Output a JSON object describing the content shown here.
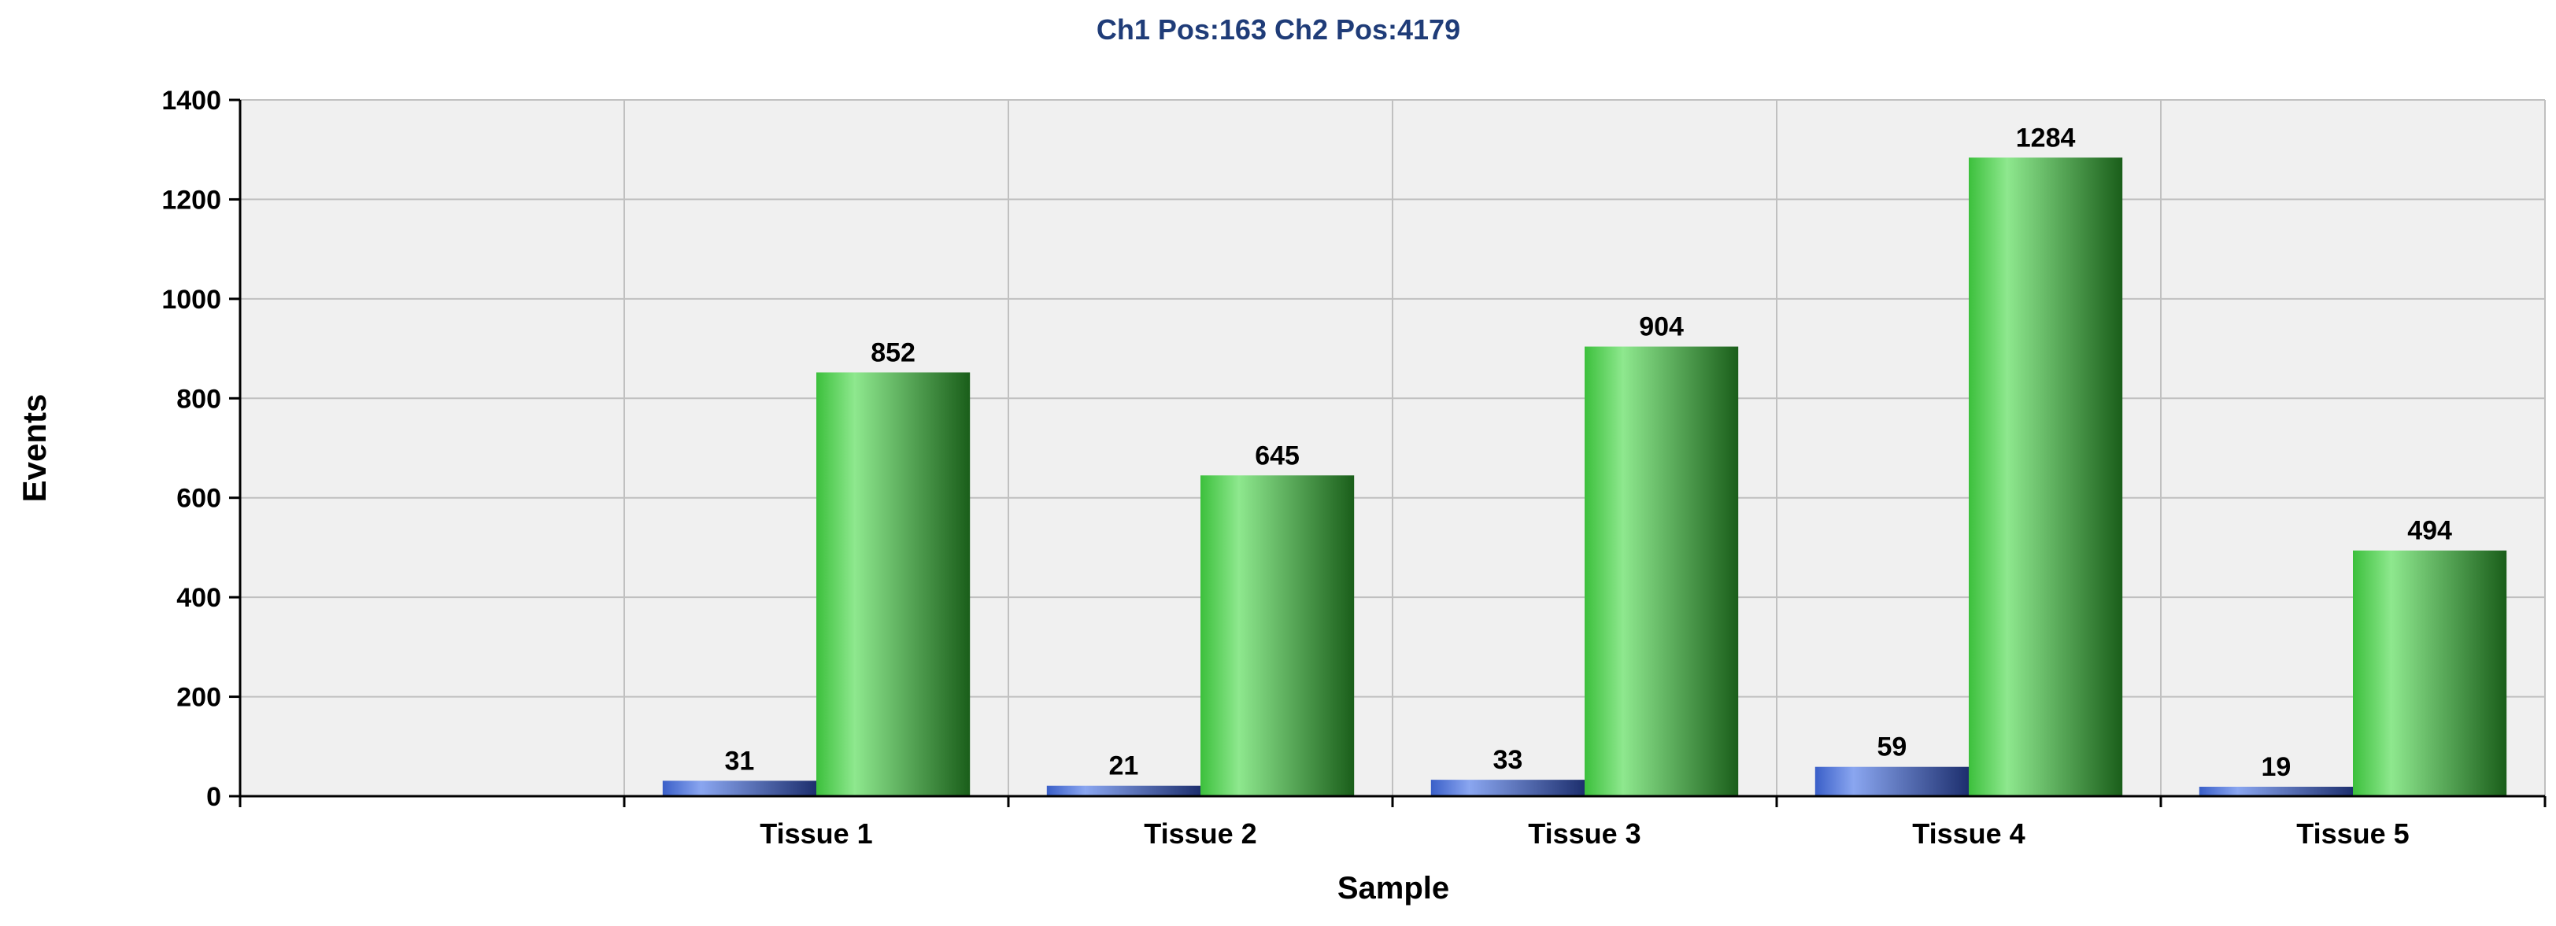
{
  "chart_data": {
    "type": "bar",
    "title": "Ch1 Pos:163 Ch2 Pos:4179",
    "xlabel": "Sample",
    "ylabel": "Events",
    "categories": [
      "Tissue 1",
      "Tissue 2",
      "Tissue 3",
      "Tissue 4",
      "Tissue 5"
    ],
    "series": [
      {
        "values": [
          31,
          21,
          33,
          59,
          19
        ],
        "color": "#3a5fc8",
        "gradient": [
          "#8aa6f0",
          "#1d2f6e"
        ]
      },
      {
        "values": [
          852,
          645,
          904,
          1284,
          494
        ],
        "color": "#3cc03c",
        "gradient": [
          "#8ee88e",
          "#1a5e1a"
        ]
      }
    ],
    "ylim": [
      0,
      1400
    ],
    "yticks": [
      0,
      200,
      400,
      600,
      800,
      1000,
      1200,
      1400
    ],
    "xlim": [
      -0.5,
      5.5
    ],
    "grid": true,
    "data_labels": true,
    "legend": "none",
    "colors": {
      "title": "#1f3c78",
      "plot_background": "#f0f0f0",
      "grid": "#c0c0c0",
      "axis": "#000000"
    }
  }
}
